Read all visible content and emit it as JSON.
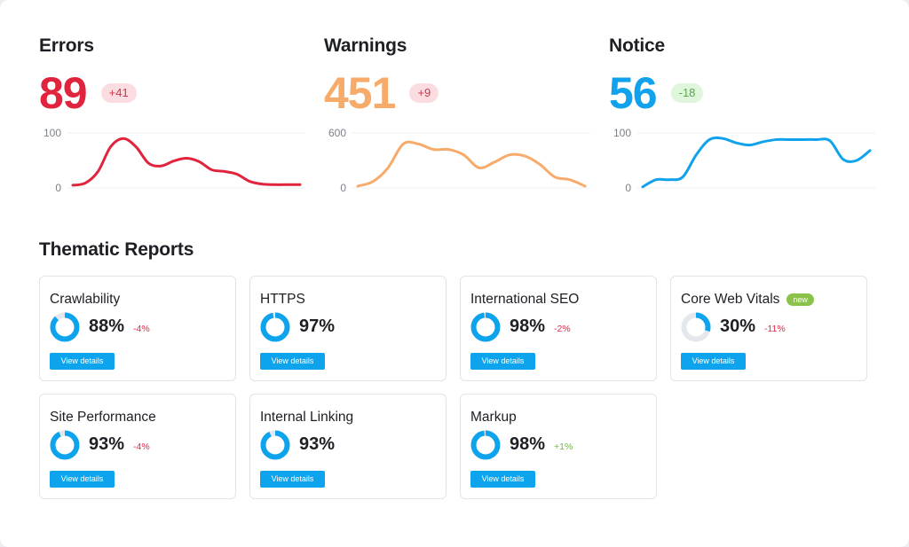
{
  "colors": {
    "errors": "#e0243d",
    "warnings": "#f7ab6b",
    "notice": "#10a2ec",
    "button": "#0ea4ed"
  },
  "metrics": [
    {
      "title": "Errors",
      "value": "89",
      "badge": "+41",
      "badge_bg": "#fbdde1",
      "badge_fg": "#c9384b",
      "color": "#e0243d",
      "y_ticks": [
        "100",
        "0"
      ],
      "ylim": [
        0,
        100
      ],
      "series": [
        5,
        9,
        30,
        75,
        90,
        75,
        45,
        40,
        49,
        54,
        48,
        33,
        30,
        25,
        12,
        7,
        6,
        6,
        6
      ]
    },
    {
      "title": "Warnings",
      "value": "451",
      "badge": "+9",
      "badge_bg": "#fbdde1",
      "badge_fg": "#c9384b",
      "color": "#f7ab6b",
      "y_ticks": [
        "600",
        "0"
      ],
      "ylim": [
        0,
        600
      ],
      "series": [
        20,
        70,
        220,
        480,
        480,
        420,
        420,
        360,
        220,
        280,
        360,
        350,
        260,
        120,
        90,
        20
      ]
    },
    {
      "title": "Notice",
      "value": "56",
      "badge": "-18",
      "badge_bg": "#dff5dc",
      "badge_fg": "#58a946",
      "color": "#10a2ec",
      "y_ticks": [
        "100",
        "0"
      ],
      "ylim": [
        0,
        100
      ],
      "series": [
        2,
        15,
        15,
        20,
        60,
        88,
        90,
        82,
        78,
        84,
        88,
        88,
        88,
        88,
        86,
        52,
        50,
        68
      ]
    }
  ],
  "thematic": {
    "title": "Thematic Reports",
    "button_label": "View details",
    "new_label": "new",
    "reports": [
      {
        "name": "Crawlability",
        "pct": "88%",
        "fraction": 0.88,
        "delta": "-4%",
        "delta_type": "neg"
      },
      {
        "name": "HTTPS",
        "pct": "97%",
        "fraction": 0.97,
        "delta": "",
        "delta_type": ""
      },
      {
        "name": "International SEO",
        "pct": "98%",
        "fraction": 0.98,
        "delta": "-2%",
        "delta_type": "neg"
      },
      {
        "name": "Core Web Vitals",
        "pct": "30%",
        "fraction": 0.3,
        "delta": "-11%",
        "delta_type": "neg",
        "is_new": true
      },
      {
        "name": "Site Performance",
        "pct": "93%",
        "fraction": 0.93,
        "delta": "-4%",
        "delta_type": "neg"
      },
      {
        "name": "Internal Linking",
        "pct": "93%",
        "fraction": 0.93,
        "delta": "",
        "delta_type": ""
      },
      {
        "name": "Markup",
        "pct": "98%",
        "fraction": 0.98,
        "delta": "+1%",
        "delta_type": "pos"
      }
    ]
  }
}
